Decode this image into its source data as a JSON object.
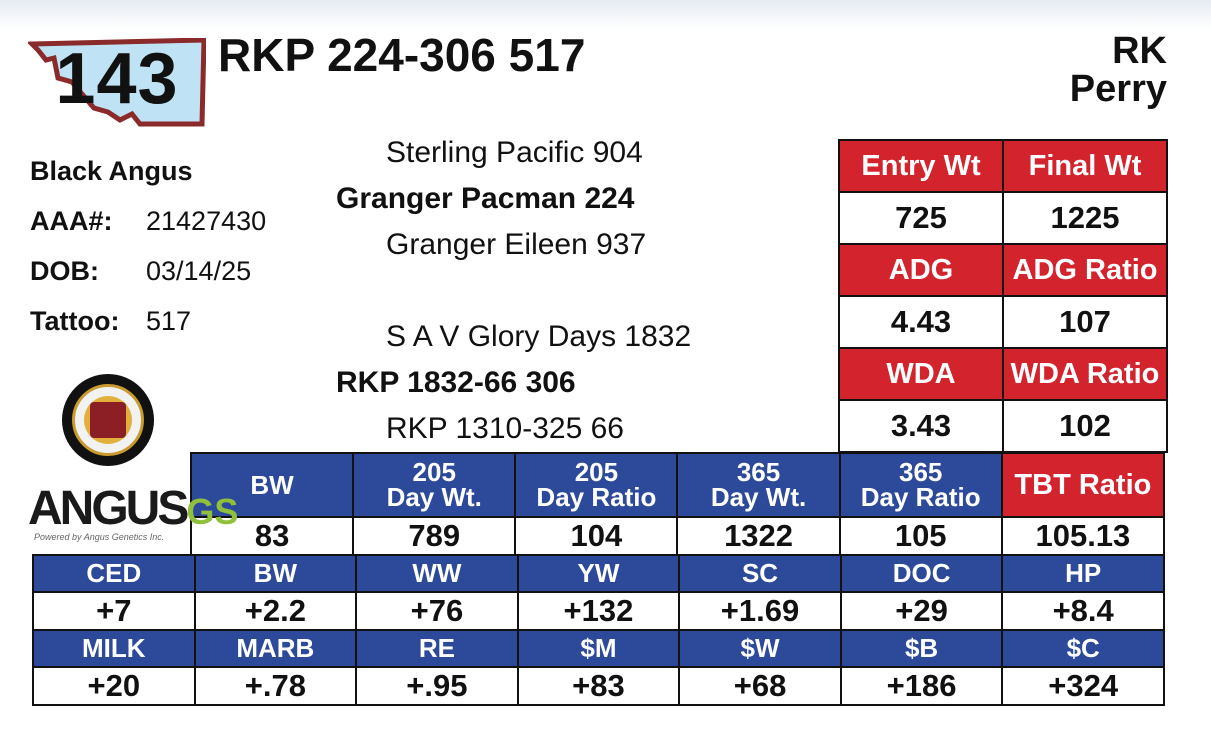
{
  "lot": {
    "number": "143"
  },
  "animal": {
    "name": "RKP 224-306 517"
  },
  "owner": {
    "line1": "RK",
    "line2": "Perry"
  },
  "info": {
    "breed": "Black Angus",
    "aaa_label": "AAA#:",
    "aaa": "21427430",
    "dob_label": "DOB:",
    "dob": "03/14/25",
    "tattoo_label": "Tattoo:",
    "tattoo": "517"
  },
  "pedigree": {
    "sire_sire": "Sterling Pacific 904",
    "sire": "Granger Pacman 224",
    "sire_dam": "Granger Eileen 937",
    "dam_sire": "S A V Glory Days 1832",
    "dam": "RKP 1832-66 306",
    "dam_dam": "RKP 1310-325 66"
  },
  "performance": {
    "entry_wt_label": "Entry Wt",
    "final_wt_label": "Final Wt",
    "entry_wt": "725",
    "final_wt": "1225",
    "adg_label": "ADG",
    "adg_ratio_label": "ADG Ratio",
    "adg": "4.43",
    "adg_ratio": "107",
    "wda_label": "WDA",
    "wda_ratio_label": "WDA Ratio",
    "wda": "3.43",
    "wda_ratio": "102"
  },
  "weights": {
    "headers": [
      {
        "l1": "BW",
        "l2": ""
      },
      {
        "l1": "205",
        "l2": "Day Wt."
      },
      {
        "l1": "205",
        "l2": "Day Ratio"
      },
      {
        "l1": "365",
        "l2": "Day Wt."
      },
      {
        "l1": "365",
        "l2": "Day Ratio"
      }
    ],
    "values": [
      "83",
      "789",
      "104",
      "1322",
      "105"
    ],
    "tbt_label": "TBT Ratio",
    "tbt": "105.13"
  },
  "epd": {
    "row1_headers": [
      "CED",
      "BW",
      "WW",
      "YW",
      "SC",
      "DOC",
      "HP"
    ],
    "row1_values": [
      "+7",
      "+2.2",
      "+76",
      "+132",
      "+1.69",
      "+29",
      "+8.4"
    ],
    "row2_headers": [
      "MILK",
      "MARB",
      "RE",
      "$M",
      "$W",
      "$B",
      "$C"
    ],
    "row2_values": [
      "+20",
      "+.78",
      "+.95",
      "+83",
      "+68",
      "+186",
      "+324"
    ]
  },
  "logos": {
    "angus_gs": "ANGUS",
    "angus_gs_suffix": "GS",
    "angus_gs_tagline": "Powered by Angus Genetics Inc."
  },
  "colors": {
    "red": "#d3242e",
    "blue": "#2d4a9a",
    "lot_badge": "#bfe3f5",
    "lot_border": "#8b2a2a"
  }
}
